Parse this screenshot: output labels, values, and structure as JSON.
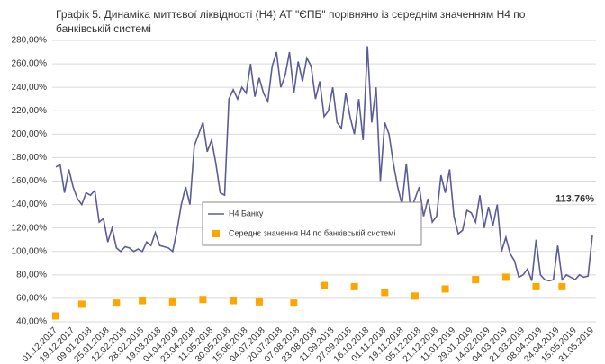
{
  "chart_data": {
    "type": "line",
    "title": "Графік 5. Динаміка миттєвої ліквідності (Н4) АТ \"ЄПБ\" порівняно із середнім значенням Н4 по банківській системі",
    "categories": [
      "01.12.2017",
      null,
      null,
      null,
      "19.12.2017",
      null,
      null,
      null,
      "09.01.2018",
      null,
      null,
      null,
      "25.01.2018",
      null,
      null,
      null,
      "12.02.2018",
      null,
      null,
      null,
      "28.02.2018",
      null,
      null,
      null,
      "19.03.2018",
      null,
      null,
      null,
      "04.04.2018",
      null,
      null,
      null,
      "23.04.2018",
      null,
      null,
      null,
      "11.05.2018",
      null,
      null,
      null,
      "30.05.2018",
      null,
      null,
      null,
      "15.06.2018",
      null,
      null,
      null,
      "04.07.2018",
      null,
      null,
      null,
      "20.07.2018",
      null,
      null,
      null,
      "07.08.2018",
      null,
      null,
      null,
      "23.08.2018",
      null,
      null,
      null,
      "11.09.2018",
      null,
      null,
      null,
      "27.09.2018",
      null,
      null,
      null,
      "16.10.2018",
      null,
      null,
      null,
      "01.11.2018",
      null,
      null,
      null,
      "19.11.2018",
      null,
      null,
      null,
      "05.12.2018",
      null,
      null,
      null,
      "21.12.2018",
      null,
      null,
      null,
      "11.01.2019",
      null,
      null,
      null,
      "29.01.2019",
      null,
      null,
      null,
      "14.02.2019",
      null,
      null,
      null,
      "04.03.2019",
      null,
      null,
      null,
      "21.03.2019",
      null,
      null,
      null,
      "08.04.2019",
      null,
      null,
      null,
      "24.04.2019",
      null,
      null,
      null,
      "15.05.2019",
      null,
      null,
      null,
      "31.05.2019"
    ],
    "series": [
      {
        "name": "Н4 Банку",
        "color": "#5c5c99",
        "values": [
          172,
          174,
          150,
          170,
          155,
          145,
          140,
          150,
          148,
          152,
          125,
          128,
          108,
          120,
          103,
          100,
          104,
          103,
          100,
          102,
          100,
          108,
          105,
          116,
          105,
          104,
          103,
          100,
          118,
          140,
          155,
          140,
          190,
          200,
          210,
          185,
          195,
          175,
          150,
          148,
          230,
          238,
          230,
          240,
          235,
          260,
          232,
          248,
          235,
          228,
          258,
          270,
          240,
          250,
          270,
          235,
          262,
          245,
          265,
          258,
          230,
          245,
          215,
          220,
          240,
          210,
          205,
          235,
          215,
          200,
          230,
          195,
          275,
          210,
          240,
          160,
          210,
          200,
          175,
          155,
          140,
          175,
          135,
          145,
          155,
          130,
          145,
          125,
          130,
          165,
          150,
          170,
          130,
          115,
          118,
          135,
          133,
          125,
          148,
          120,
          138,
          122,
          140,
          100,
          112,
          98,
          92,
          78,
          80,
          85,
          75,
          110,
          80,
          76,
          75,
          76,
          105,
          76,
          80,
          78,
          76,
          80,
          78,
          79,
          113.76
        ],
        "value_labels": [
          null,
          null,
          null,
          null,
          null,
          null,
          null,
          null,
          null,
          null,
          null,
          null,
          null,
          null,
          null,
          null,
          null,
          null,
          null,
          null,
          null,
          null,
          null,
          null,
          null,
          null,
          null,
          null,
          null,
          null,
          null,
          null,
          null,
          null,
          null,
          null,
          null,
          null,
          null,
          null,
          null,
          null,
          null,
          null,
          null,
          null,
          null,
          null,
          null,
          null,
          null,
          null,
          null,
          null,
          null,
          null,
          null,
          null,
          null,
          null,
          null,
          null,
          null,
          null,
          null,
          null,
          null,
          null,
          null,
          null,
          null,
          null,
          null,
          null,
          null,
          null,
          null,
          null,
          null,
          null,
          null,
          null,
          null,
          null,
          null,
          null,
          null,
          null,
          null,
          null,
          null,
          null,
          null,
          null,
          null,
          null,
          null,
          null,
          null,
          null,
          null,
          null,
          null,
          null,
          null,
          null,
          null,
          null,
          null,
          null,
          null,
          null,
          null,
          null,
          null,
          null,
          null,
          null,
          null,
          null,
          null,
          null,
          null,
          null,
          "113,76%"
        ]
      },
      {
        "name": "Середнє значення Н4 по банківській системі",
        "color": "#ffa500",
        "type": "scatter",
        "values": [
          45,
          null,
          null,
          null,
          null,
          null,
          55,
          null,
          null,
          null,
          null,
          null,
          null,
          null,
          56,
          null,
          null,
          null,
          null,
          null,
          58,
          null,
          null,
          null,
          null,
          null,
          null,
          57,
          null,
          null,
          null,
          null,
          null,
          null,
          59,
          null,
          null,
          null,
          null,
          null,
          null,
          58,
          null,
          null,
          null,
          null,
          null,
          57,
          null,
          null,
          null,
          null,
          null,
          null,
          null,
          56,
          null,
          null,
          null,
          null,
          null,
          null,
          71,
          null,
          null,
          null,
          null,
          null,
          null,
          70,
          null,
          null,
          null,
          null,
          null,
          null,
          65,
          null,
          null,
          null,
          null,
          null,
          null,
          62,
          null,
          null,
          null,
          null,
          null,
          null,
          68,
          null,
          null,
          null,
          null,
          null,
          null,
          76,
          null,
          null,
          null,
          null,
          null,
          null,
          78,
          null,
          null,
          null,
          null,
          null,
          null,
          70,
          null,
          null,
          null,
          null,
          null,
          70,
          null,
          null,
          null,
          null,
          null,
          null,
          null
        ]
      }
    ],
    "ylim": [
      40,
      280
    ],
    "yticks": [
      {
        "value": 40,
        "label": "40,00%"
      },
      {
        "value": 60,
        "label": "60,00%"
      },
      {
        "value": 80,
        "label": "80,00%"
      },
      {
        "value": 100,
        "label": "100,00%"
      },
      {
        "value": 120,
        "label": "120,00%"
      },
      {
        "value": 140,
        "label": "140,00%"
      },
      {
        "value": 160,
        "label": "160,00%"
      },
      {
        "value": 180,
        "label": "180,00%"
      },
      {
        "value": 200,
        "label": "200,00%"
      },
      {
        "value": 220,
        "label": "220,00%"
      },
      {
        "value": 240,
        "label": "240,00%"
      },
      {
        "value": 260,
        "label": "260,00%"
      },
      {
        "value": 280,
        "label": "280,00%"
      }
    ],
    "grid": true
  }
}
